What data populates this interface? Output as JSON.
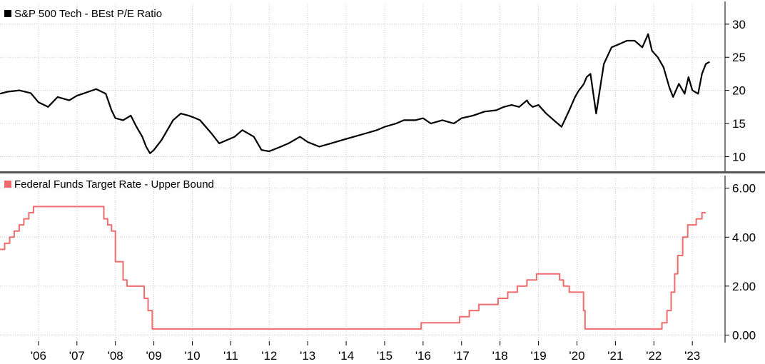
{
  "chart_data": [
    {
      "type": "line",
      "title": "",
      "xlabel": "",
      "ylabel": "",
      "ylim": [
        8,
        33
      ],
      "y_ticks": [
        "30",
        "25",
        "20",
        "15",
        "10"
      ],
      "grid": true,
      "legend_position": "top-left",
      "series": [
        {
          "name": "S&P 500 Tech - BEst P/E Ratio",
          "color": "#000000",
          "x": [
            2005.0,
            2005.2,
            2005.5,
            2005.8,
            2006.0,
            2006.25,
            2006.5,
            2006.8,
            2007.0,
            2007.2,
            2007.5,
            2007.75,
            2007.9,
            2008.0,
            2008.2,
            2008.4,
            2008.55,
            2008.7,
            2008.8,
            2008.9,
            2009.0,
            2009.2,
            2009.5,
            2009.7,
            2009.9,
            2010.0,
            2010.2,
            2010.5,
            2010.7,
            2010.9,
            2011.1,
            2011.3,
            2011.6,
            2011.8,
            2012.0,
            2012.3,
            2012.5,
            2012.8,
            2013.0,
            2013.3,
            2013.6,
            2013.9,
            2014.2,
            2014.5,
            2014.8,
            2015.0,
            2015.3,
            2015.5,
            2015.8,
            2016.0,
            2016.2,
            2016.5,
            2016.8,
            2017.0,
            2017.3,
            2017.6,
            2017.9,
            2018.1,
            2018.3,
            2018.5,
            2018.6,
            2018.7,
            2018.75,
            2018.85,
            2019.0,
            2019.2,
            2019.4,
            2019.6,
            2019.8,
            2019.95,
            2020.05,
            2020.12,
            2020.18,
            2020.25,
            2020.35,
            2020.5,
            2020.7,
            2020.9,
            2021.1,
            2021.3,
            2021.5,
            2021.7,
            2021.85,
            2021.95,
            2022.1,
            2022.25,
            2022.4,
            2022.5,
            2022.65,
            2022.8,
            2022.9,
            2023.0,
            2023.15,
            2023.25,
            2023.35,
            2023.45
          ],
          "values": [
            19.5,
            19.8,
            20.0,
            19.6,
            18.2,
            17.5,
            19.0,
            18.5,
            19.2,
            19.6,
            20.2,
            19.5,
            17.0,
            15.8,
            15.5,
            16.2,
            14.5,
            13.0,
            11.5,
            10.5,
            11.0,
            12.5,
            15.5,
            16.5,
            16.2,
            16.0,
            15.5,
            13.5,
            12.0,
            12.5,
            13.0,
            14.0,
            13.0,
            11.0,
            10.8,
            11.5,
            12.0,
            13.0,
            12.2,
            11.5,
            12.0,
            12.5,
            13.0,
            13.5,
            14.0,
            14.5,
            15.0,
            15.5,
            15.5,
            15.8,
            15.0,
            15.5,
            15.0,
            15.8,
            16.2,
            16.8,
            17.0,
            17.5,
            17.8,
            17.5,
            18.0,
            18.5,
            18.0,
            17.5,
            17.8,
            16.5,
            15.5,
            14.5,
            17.0,
            19.0,
            20.0,
            20.5,
            21.0,
            22.0,
            22.5,
            16.5,
            24.0,
            26.5,
            27.0,
            27.5,
            27.5,
            26.5,
            28.5,
            26.0,
            25.0,
            23.5,
            20.5,
            19.0,
            21.0,
            19.5,
            22.0,
            20.0,
            19.5,
            22.5,
            24.0,
            24.3
          ]
        }
      ]
    },
    {
      "type": "line",
      "title": "",
      "xlabel": "",
      "ylabel": "",
      "ylim": [
        -0.25,
        6.4
      ],
      "y_ticks": [
        "6.00",
        "4.00",
        "2.00",
        "0.00"
      ],
      "grid": true,
      "legend_position": "top-left",
      "series": [
        {
          "name": "Federal Funds Target Rate - Upper Bound",
          "color": "#ee6b6e",
          "step": true,
          "x": [
            2005.0,
            2005.12,
            2005.25,
            2005.37,
            2005.5,
            2005.62,
            2005.75,
            2005.87,
            2006.0,
            2006.12,
            2006.25,
            2006.37,
            2006.5,
            2007.7,
            2007.8,
            2007.9,
            2008.0,
            2008.05,
            2008.2,
            2008.3,
            2008.75,
            2008.85,
            2008.96,
            2015.95,
            2016.95,
            2017.2,
            2017.45,
            2017.95,
            2018.2,
            2018.45,
            2018.7,
            2018.95,
            2019.55,
            2019.65,
            2019.8,
            2020.17,
            2020.21,
            2022.21,
            2022.34,
            2022.45,
            2022.54,
            2022.62,
            2022.75,
            2022.88,
            2022.96,
            2023.1,
            2023.25,
            2023.35
          ],
          "values": [
            3.5,
            3.75,
            4.0,
            4.25,
            4.5,
            4.75,
            5.0,
            5.25,
            5.25,
            5.25,
            5.25,
            5.25,
            5.25,
            4.75,
            4.5,
            4.25,
            3.0,
            3.0,
            2.25,
            2.0,
            1.5,
            1.0,
            0.25,
            0.5,
            0.75,
            1.0,
            1.25,
            1.5,
            1.75,
            2.0,
            2.25,
            2.5,
            2.25,
            2.0,
            1.75,
            1.0,
            0.25,
            0.5,
            1.0,
            1.75,
            2.5,
            3.25,
            4.0,
            4.5,
            4.5,
            4.75,
            5.0,
            5.0
          ]
        }
      ]
    }
  ],
  "x_axis": {
    "range": [
      2005.0,
      2023.85
    ],
    "tick_values": [
      2006,
      2007,
      2008,
      2009,
      2010,
      2011,
      2012,
      2013,
      2014,
      2015,
      2016,
      2017,
      2018,
      2019,
      2020,
      2021,
      2022,
      2023
    ],
    "tick_labels": [
      "'06",
      "'07",
      "'08",
      "'09",
      "'10",
      "'11",
      "'12",
      "'13",
      "'14",
      "'15",
      "'16",
      "'17",
      "'18",
      "'19",
      "'20",
      "'21",
      "'22",
      "'23"
    ]
  },
  "colors": {
    "grid": "#c8c8c8",
    "axis": "#000000",
    "divider": "#555555"
  }
}
